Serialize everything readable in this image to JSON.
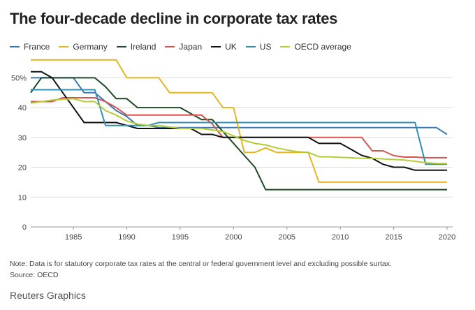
{
  "chart_data": {
    "type": "line",
    "title": "The four-decade decline in corporate tax rates",
    "xlim": [
      1981,
      2020
    ],
    "ylim": [
      0,
      55
    ],
    "y_ticks": [
      0,
      10,
      20,
      30,
      40,
      50
    ],
    "y_tick_labels": [
      "0",
      "10",
      "20",
      "30",
      "40",
      "50%"
    ],
    "x_ticks": [
      1985,
      1990,
      1995,
      2000,
      2005,
      2010,
      2015,
      2020
    ],
    "x_tick_labels": [
      "1985",
      "1990",
      "1995",
      "2000",
      "2005",
      "2010",
      "2015",
      "2020"
    ],
    "grid": "horizontal",
    "legend_position": "top-left",
    "series": [
      {
        "name": "France",
        "color": "#3a78b5",
        "x": [
          1981,
          1985,
          1986,
          1987,
          1988,
          1989,
          1990,
          1991,
          1992,
          1993,
          1995,
          2000,
          2005,
          2010,
          2017,
          2018,
          2019,
          2020
        ],
        "y": [
          50,
          50,
          45,
          45,
          42,
          39,
          37,
          34,
          34,
          33.3,
          33.3,
          33.3,
          33.3,
          33.3,
          33.3,
          33.3,
          33.3,
          31
        ]
      },
      {
        "name": "Germany",
        "color": "#e6b422",
        "x": [
          1981,
          1989,
          1990,
          1993,
          1994,
          1998,
          1999,
          2000,
          2001,
          2002,
          2003,
          2004,
          2005,
          2007,
          2008,
          2010,
          2015,
          2020
        ],
        "y": [
          56,
          56,
          50,
          50,
          45,
          45,
          40,
          40,
          25,
          25,
          26.5,
          25,
          25,
          25,
          15,
          15,
          15,
          15
        ]
      },
      {
        "name": "Ireland",
        "color": "#1d4a22",
        "x": [
          1981,
          1982,
          1983,
          1984,
          1985,
          1986,
          1987,
          1988,
          1989,
          1990,
          1991,
          1992,
          1993,
          1995,
          1996,
          1997,
          1998,
          1999,
          2000,
          2001,
          2002,
          2003,
          2005,
          2010,
          2015,
          2020
        ],
        "y": [
          45,
          50,
          50,
          50,
          50,
          50,
          50,
          47,
          43,
          43,
          40,
          40,
          40,
          40,
          38,
          36,
          36,
          32,
          28,
          24,
          20,
          12.5,
          12.5,
          12.5,
          12.5,
          12.5
        ]
      },
      {
        "name": "Japan",
        "color": "#d9534f",
        "x": [
          1981,
          1983,
          1984,
          1985,
          1986,
          1987,
          1988,
          1989,
          1990,
          1995,
          1996,
          1997,
          1998,
          1999,
          2000,
          2005,
          2010,
          2012,
          2013,
          2014,
          2015,
          2016,
          2017,
          2018,
          2019,
          2020
        ],
        "y": [
          42,
          42,
          43.3,
          43.3,
          43.3,
          43.3,
          42,
          40,
          37.5,
          37.5,
          37.5,
          37.5,
          34.5,
          30,
          30,
          30,
          30,
          30,
          25.5,
          25.5,
          23.9,
          23.4,
          23.4,
          23.2,
          23.2,
          23.2
        ]
      },
      {
        "name": "UK",
        "color": "#111111",
        "x": [
          1981,
          1982,
          1983,
          1984,
          1985,
          1986,
          1987,
          1988,
          1989,
          1990,
          1991,
          1992,
          1995,
          1996,
          1997,
          1998,
          1999,
          2000,
          2005,
          2007,
          2008,
          2009,
          2010,
          2011,
          2012,
          2013,
          2014,
          2015,
          2016,
          2017,
          2018,
          2019,
          2020
        ],
        "y": [
          52,
          52,
          50,
          45,
          40,
          35,
          35,
          35,
          35,
          34,
          33,
          33,
          33,
          33,
          31,
          31,
          30,
          30,
          30,
          30,
          28,
          28,
          28,
          26,
          24,
          23,
          21,
          20,
          20,
          19,
          19,
          19,
          19
        ]
      },
      {
        "name": "US",
        "color": "#2f8fb5",
        "x": [
          1981,
          1987,
          1988,
          1990,
          1992,
          1993,
          1995,
          2000,
          2005,
          2010,
          2015,
          2017,
          2018,
          2019,
          2020
        ],
        "y": [
          46,
          46,
          34,
          34,
          34,
          35,
          35,
          35,
          35,
          35,
          35,
          35,
          21,
          21,
          21
        ]
      },
      {
        "name": "OECD average",
        "color": "#b5cc34",
        "x": [
          1981,
          1983,
          1985,
          1986,
          1987,
          1988,
          1989,
          1990,
          1991,
          1992,
          1993,
          1994,
          1995,
          1996,
          1997,
          1998,
          1999,
          2000,
          2001,
          2002,
          2003,
          2004,
          2005,
          2006,
          2007,
          2008,
          2009,
          2010,
          2011,
          2012,
          2013,
          2014,
          2015,
          2016,
          2017,
          2018,
          2019,
          2020
        ],
        "y": [
          41.5,
          42.5,
          43,
          42,
          42,
          39,
          37.5,
          35.5,
          34.5,
          34,
          34,
          33.5,
          33,
          33,
          33,
          32.5,
          32,
          30.5,
          29,
          28,
          27.5,
          26.5,
          25.8,
          25.2,
          25,
          23.5,
          23.5,
          23.3,
          23.2,
          23,
          23,
          22.8,
          22.6,
          22.4,
          22,
          21.5,
          21.3,
          21.2
        ]
      }
    ]
  },
  "footer": {
    "note": "Note: Data is for statutory corporate tax rates at the central or federal government level and excluding possible surtax.",
    "source": "Source: OECD",
    "credit": "Reuters Graphics"
  }
}
